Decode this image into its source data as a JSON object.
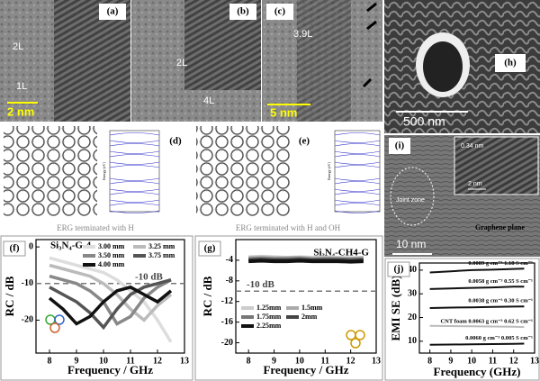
{
  "panels": {
    "a": {
      "label": "(a)",
      "texts": [
        "2L",
        "1L"
      ],
      "scale_bar": "2 nm"
    },
    "b": {
      "label": "(b)",
      "texts": [
        "2L",
        "4L"
      ]
    },
    "c": {
      "label": "(c)",
      "texts": [
        "3.9L"
      ],
      "scale_bar": "5 nm"
    },
    "h": {
      "label": "(h)",
      "scale_bar": "500 nm"
    },
    "d": {
      "label": "(d)",
      "caption": "ERG terminated with H",
      "axis_label": "Energy (eV)"
    },
    "e": {
      "label": "(e)",
      "caption": "ERG terminated with H and OH",
      "axis_label": "Energy (eV)"
    },
    "i": {
      "label": "(i)",
      "texts": [
        "Joint zone",
        "Graphene plane"
      ],
      "scale_bar": "10 nm",
      "inset_scale_bar": "2 nm",
      "inset_text": "0.34 nm"
    }
  },
  "chart_data": [
    {
      "type": "line",
      "panel": "(f)",
      "title": "Si₃N₄-G-4",
      "x_label": "Frequency / GHz",
      "y_label": "RC / dB",
      "x": [
        8,
        8.5,
        9,
        9.5,
        10,
        10.5,
        11,
        11.5,
        12,
        12.5
      ],
      "xlim": [
        7.5,
        13
      ],
      "xticks": [
        8,
        9,
        10,
        11,
        12,
        13
      ],
      "ylim": [
        -29,
        2
      ],
      "yticks": [
        -20,
        -10,
        0
      ],
      "threshold": {
        "value": -10,
        "label": "-10 dB"
      },
      "legend": "upper right",
      "series": [
        {
          "name": "3.00 mm",
          "color": "#dddddd",
          "values": [
            -3,
            -4,
            -5,
            -6,
            -7,
            -9,
            -12,
            -15,
            -20,
            -26
          ]
        },
        {
          "name": "3.25 mm",
          "color": "#bbbbbb",
          "values": [
            -5,
            -6,
            -7,
            -8,
            -10,
            -13,
            -17,
            -20,
            -16,
            -13
          ]
        },
        {
          "name": "3.50 mm",
          "color": "#888888",
          "values": [
            -8,
            -9,
            -10,
            -12,
            -15,
            -21,
            -19,
            -14,
            -11,
            -9
          ]
        },
        {
          "name": "3.75 mm",
          "color": "#555555",
          "values": [
            -11,
            -13,
            -15,
            -18,
            -22,
            -17,
            -13,
            -11,
            -10,
            -9
          ]
        },
        {
          "name": "4.00 mm",
          "color": "#111111",
          "values": [
            -14,
            -17,
            -21,
            -19,
            -15,
            -12,
            -11,
            -13,
            -15,
            -12
          ]
        }
      ]
    },
    {
      "type": "line",
      "panel": "(g)",
      "title": "Si₃N₄-CH4-G",
      "x_label": "Frequency / GHz",
      "y_label": "RC / dB",
      "x": [
        8,
        8.5,
        9,
        9.5,
        10,
        10.5,
        11,
        11.5,
        12,
        12.5
      ],
      "xlim": [
        7.5,
        13
      ],
      "xticks": [
        8,
        9,
        10,
        11,
        12,
        13
      ],
      "ylim": [
        -22,
        0
      ],
      "yticks": [
        -20,
        -16,
        -12,
        -8,
        -4
      ],
      "threshold": {
        "value": -10,
        "label": "-10 dB"
      },
      "legend": "lower left",
      "series": [
        {
          "name": "1.25mm",
          "color": "#cccccc",
          "values": [
            -3.4,
            -3.3,
            -3.4,
            -3.5,
            -3.4,
            -3.5,
            -3.4,
            -3.5,
            -3.6,
            -3.5
          ]
        },
        {
          "name": "1.5mm",
          "color": "#aaaaaa",
          "values": [
            -3.6,
            -3.5,
            -3.6,
            -3.6,
            -3.5,
            -3.7,
            -3.6,
            -3.7,
            -3.7,
            -3.6
          ]
        },
        {
          "name": "1.75mm",
          "color": "#777777",
          "values": [
            -3.8,
            -3.7,
            -3.8,
            -3.8,
            -3.7,
            -3.9,
            -3.8,
            -3.8,
            -3.9,
            -3.8
          ]
        },
        {
          "name": "2mm",
          "color": "#444444",
          "values": [
            -4.0,
            -3.9,
            -4.0,
            -4.0,
            -3.9,
            -4.0,
            -4.0,
            -4.0,
            -4.1,
            -4.0
          ]
        },
        {
          "name": "2.25mm",
          "color": "#111111",
          "values": [
            -4.2,
            -4.1,
            -4.2,
            -4.2,
            -4.1,
            -4.2,
            -4.2,
            -4.2,
            -4.3,
            -4.2
          ]
        }
      ]
    },
    {
      "type": "line",
      "panel": "(j)",
      "x_label": "Frequency (GHz)",
      "y_label": "EMI SE (dB)",
      "x": [
        8,
        9,
        10,
        11,
        12,
        12.5
      ],
      "xlim": [
        7.5,
        13
      ],
      "xticks": [
        8,
        9,
        10,
        11,
        12,
        13
      ],
      "ylim": [
        5,
        43
      ],
      "yticks": [
        10,
        20,
        30,
        40
      ],
      "legend": "inline",
      "series": [
        {
          "name": "0.0089 g cm⁻³ 1.18 S cm⁻¹",
          "color": "#111111",
          "values": [
            39,
            39.5,
            40,
            40.2,
            40.5,
            40.6
          ]
        },
        {
          "name": "0.0058 g cm⁻³ 0.55 S cm⁻¹",
          "color": "#111111",
          "values": [
            32,
            32.3,
            32.5,
            32.7,
            33,
            33
          ]
        },
        {
          "name": "0.0038 g cm⁻³ 0.30 S cm⁻¹",
          "color": "#111111",
          "values": [
            24,
            24.2,
            24.3,
            24.5,
            24.6,
            24.7
          ]
        },
        {
          "name": "CNT foam 0.0063 g cm⁻³ 0.62 S cm⁻¹",
          "color": "#bbbbbb",
          "values": [
            16.5,
            16.4,
            16.3,
            16.2,
            16.1,
            16
          ]
        },
        {
          "name": "0.0060 g cm⁻³ 0.005 S cm⁻¹",
          "color": "#111111",
          "values": [
            8.5,
            8.6,
            8.7,
            8.8,
            8.9,
            9
          ]
        }
      ]
    }
  ]
}
